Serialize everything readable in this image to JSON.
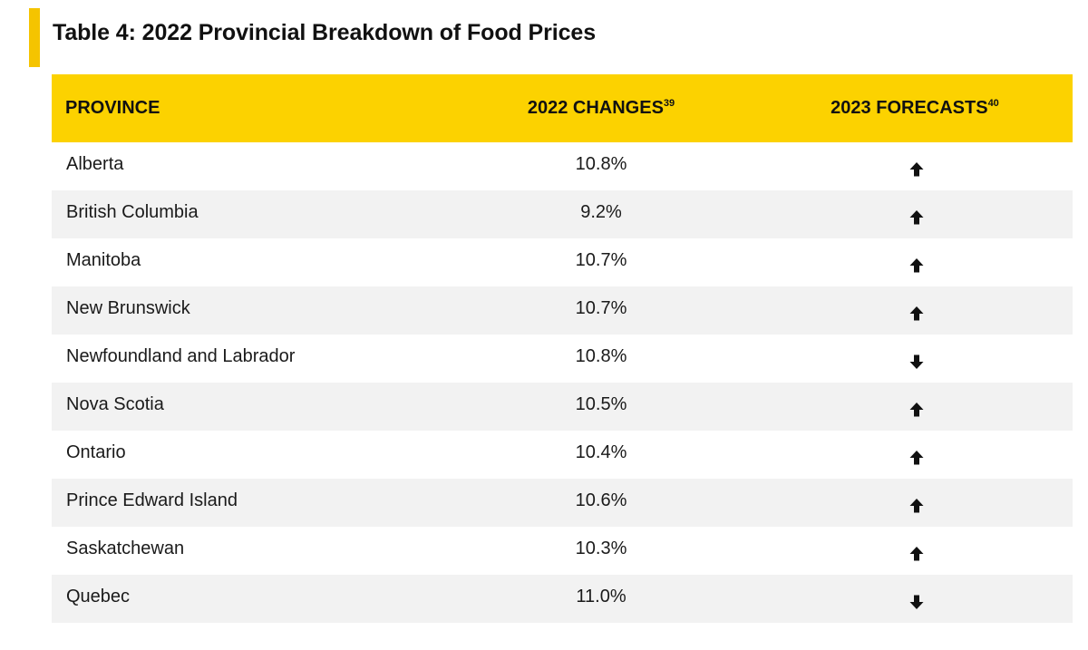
{
  "title": "Table 4: 2022 Provincial Breakdown of Food Prices",
  "header": {
    "province": "PROVINCE",
    "changes": "2022 CHANGES",
    "changes_ref": "39",
    "forecasts": "2023 FORECASTS",
    "forecasts_ref": "40"
  },
  "colors": {
    "header_bg": "#fcd200",
    "title_bar": "#f5c400",
    "alt_row": "#f2f2f2"
  },
  "rows": [
    {
      "province": "Alberta",
      "change": "10.8%",
      "forecast": "up-arrow-icon"
    },
    {
      "province": "British Columbia",
      "change": "9.2%",
      "forecast": "up-arrow-icon"
    },
    {
      "province": "Manitoba",
      "change": "10.7%",
      "forecast": "up-arrow-icon"
    },
    {
      "province": "New Brunswick",
      "change": "10.7%",
      "forecast": "up-arrow-icon"
    },
    {
      "province": "Newfoundland and Labrador",
      "change": "10.8%",
      "forecast": "down-arrow-icon"
    },
    {
      "province": "Nova Scotia",
      "change": "10.5%",
      "forecast": "up-arrow-icon"
    },
    {
      "province": "Ontario",
      "change": "10.4%",
      "forecast": "up-arrow-icon"
    },
    {
      "province": "Prince Edward Island",
      "change": "10.6%",
      "forecast": "up-arrow-icon"
    },
    {
      "province": "Saskatchewan",
      "change": "10.3%",
      "forecast": "up-arrow-icon"
    },
    {
      "province": "Quebec",
      "change": "11.0%",
      "forecast": "down-arrow-icon"
    }
  ]
}
